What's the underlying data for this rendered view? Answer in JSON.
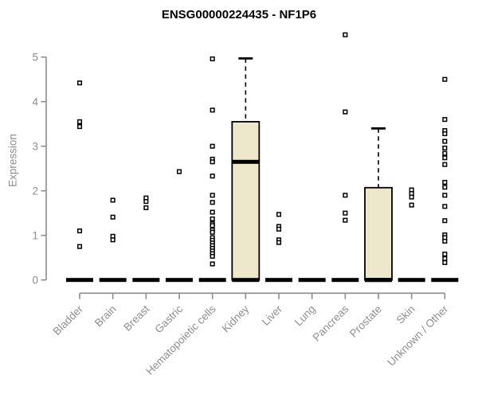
{
  "title": "ENSG00000224435 - NF1P6",
  "colors": {
    "background": "#ffffff",
    "title_text": "#000000",
    "axis_line": "#8c8c8c",
    "axis_text": "#8e8e8e",
    "box_fill": "#EDE8CC",
    "ink": "#000000"
  },
  "chart_data": {
    "type": "boxplot",
    "title": "ENSG00000224435 - NF1P6",
    "xlabel": "",
    "ylabel": "Expression",
    "ylim": [
      0,
      5
    ],
    "yticks": [
      0,
      1,
      2,
      3,
      4,
      5
    ],
    "grid": false,
    "legend": false,
    "categories": [
      "Bladder",
      "Brain",
      "Breast",
      "Gastric",
      "Hematopoietic cells",
      "Kidney",
      "Liver",
      "Lung",
      "Pancreas",
      "Prostate",
      "Skin",
      "Unknown / Other"
    ],
    "boxes": [
      {
        "category": "Bladder",
        "q1": 0,
        "median": 0,
        "q3": 0,
        "whisker_low": 0,
        "whisker_high": 0,
        "outliers": [
          4.42,
          3.55,
          3.44,
          1.1,
          0.75
        ]
      },
      {
        "category": "Brain",
        "q1": 0,
        "median": 0,
        "q3": 0,
        "whisker_low": 0,
        "whisker_high": 0,
        "outliers": [
          1.79,
          1.41,
          0.98,
          0.9
        ]
      },
      {
        "category": "Breast",
        "q1": 0,
        "median": 0,
        "q3": 0,
        "whisker_low": 0,
        "whisker_high": 0,
        "outliers": [
          1.84,
          1.76,
          1.62
        ]
      },
      {
        "category": "Gastric",
        "q1": 0,
        "median": 0,
        "q3": 0,
        "whisker_low": 0,
        "whisker_high": 0,
        "outliers": [
          2.43
        ]
      },
      {
        "category": "Hematopoietic cells",
        "q1": 0,
        "median": 0,
        "q3": 0,
        "whisker_low": 0,
        "whisker_high": 0,
        "outliers": [
          4.96,
          3.81,
          3.0,
          2.71,
          2.65,
          2.33,
          1.9,
          1.74,
          1.52,
          1.37,
          1.26,
          1.22,
          1.12,
          1.07,
          0.95,
          0.89,
          0.83,
          0.77,
          0.71,
          0.65,
          0.59,
          0.53,
          0.36
        ]
      },
      {
        "category": "Kidney",
        "q1": 0,
        "median": 2.65,
        "q3": 3.55,
        "whisker_low": 0,
        "whisker_high": 4.97,
        "outliers": []
      },
      {
        "category": "Liver",
        "q1": 0,
        "median": 0,
        "q3": 0,
        "whisker_low": 0,
        "whisker_high": 0,
        "outliers": [
          1.47,
          1.2,
          1.14,
          0.9,
          0.84
        ]
      },
      {
        "category": "Lung",
        "q1": 0,
        "median": 0,
        "q3": 0,
        "whisker_low": 0,
        "whisker_high": 0,
        "outliers": []
      },
      {
        "category": "Pancreas",
        "q1": 0,
        "median": 0,
        "q3": 0,
        "whisker_low": 0,
        "whisker_high": 0,
        "outliers": [
          5.5,
          3.77,
          1.9,
          1.5,
          1.34
        ]
      },
      {
        "category": "Prostate",
        "q1": 0,
        "median": 0,
        "q3": 2.07,
        "whisker_low": 0,
        "whisker_high": 3.4,
        "outliers": []
      },
      {
        "category": "Skin",
        "q1": 0,
        "median": 0,
        "q3": 0,
        "whisker_low": 0,
        "whisker_high": 0,
        "outliers": [
          2.02,
          1.94,
          1.86,
          1.68
        ]
      },
      {
        "category": "Unknown / Other",
        "q1": 0,
        "median": 0,
        "q3": 0,
        "whisker_low": 0,
        "whisker_high": 0,
        "outliers": [
          4.5,
          3.6,
          3.35,
          3.28,
          3.11,
          2.96,
          2.84,
          2.74,
          2.59,
          2.19,
          2.08,
          1.9,
          1.65,
          1.33,
          1.01,
          0.95,
          0.87,
          0.58,
          0.48,
          0.39
        ]
      }
    ]
  }
}
